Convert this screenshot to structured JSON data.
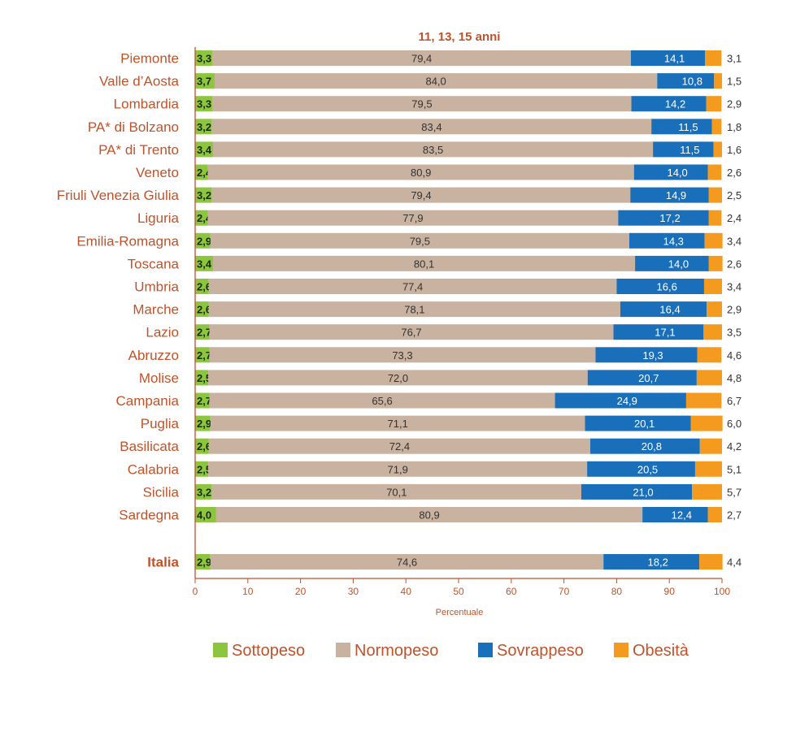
{
  "chart_data": {
    "type": "bar",
    "orientation": "horizontal",
    "stacked": true,
    "title": "11, 13, 15 anni",
    "xlabel": "Percentuale",
    "ylabel": "",
    "xlim": [
      0,
      100
    ],
    "x_ticks": [
      "0",
      "10",
      "20",
      "30",
      "40",
      "50",
      "60",
      "70",
      "80",
      "90",
      "100"
    ],
    "grid": false,
    "legend_position": "bottom",
    "categories": [
      "Piemonte",
      "Valle d’Aosta",
      "Lombardia",
      "PA* di Bolzano",
      "PA* di Trento",
      "Veneto",
      "Friuli Venezia Giulia",
      "Liguria",
      "Emilia-Romagna",
      "Toscana",
      "Umbria",
      "Marche",
      "Lazio",
      "Abruzzo",
      "Molise",
      "Campania",
      "Puglia",
      "Basilicata",
      "Calabria",
      "Sicilia",
      "Sardegna",
      "Italia"
    ],
    "emphasized_category": "Italia",
    "series": [
      {
        "name": "Sottopeso",
        "color": "#8cc63f",
        "values": [
          3.3,
          3.7,
          3.3,
          3.2,
          3.4,
          2.4,
          3.2,
          2.4,
          2.9,
          3.4,
          2.6,
          2.6,
          2.7,
          2.7,
          2.5,
          2.7,
          2.9,
          2.6,
          2.5,
          3.2,
          4.0,
          2.9
        ],
        "labels": [
          "3,3",
          "3,7",
          "3,3",
          "3,2",
          "3,4",
          "2,4",
          "3,2",
          "2,4",
          "2,9",
          "3,4",
          "2,6",
          "2,6",
          "2,7",
          "2,7",
          "2,5",
          "2,7",
          "2,9",
          "2,6",
          "2,5",
          "3,2",
          "4,0",
          "2,9"
        ]
      },
      {
        "name": "Normopeso",
        "color": "#c9b29f",
        "values": [
          79.4,
          84.0,
          79.5,
          83.4,
          83.5,
          80.9,
          79.4,
          77.9,
          79.5,
          80.1,
          77.4,
          78.1,
          76.7,
          73.3,
          72.0,
          65.6,
          71.1,
          72.4,
          71.9,
          70.1,
          80.9,
          74.6
        ],
        "labels": [
          "79,4",
          "84,0",
          "79,5",
          "83,4",
          "83,5",
          "80,9",
          "79,4",
          "77,9",
          "79,5",
          "80,1",
          "77,4",
          "78,1",
          "76,7",
          "73,3",
          "72,0",
          "65,6",
          "71,1",
          "72,4",
          "71,9",
          "70,1",
          "80,9",
          "74,6"
        ]
      },
      {
        "name": "Sovrappeso",
        "color": "#1a6fba",
        "values": [
          14.1,
          10.8,
          14.2,
          11.5,
          11.5,
          14.0,
          14.9,
          17.2,
          14.3,
          14.0,
          16.6,
          16.4,
          17.1,
          19.3,
          20.7,
          24.9,
          20.1,
          20.8,
          20.5,
          21.0,
          12.4,
          18.2
        ],
        "labels": [
          "14,1",
          "10,8",
          "14,2",
          "11,5",
          "11,5",
          "14,0",
          "14,9",
          "17,2",
          "14,3",
          "14,0",
          "16,6",
          "16,4",
          "17,1",
          "19,3",
          "20,7",
          "24,9",
          "20,1",
          "20,8",
          "20,5",
          "21,0",
          "12,4",
          "18,2"
        ]
      },
      {
        "name": "Obesità",
        "color": "#f39a1f",
        "values": [
          3.1,
          1.5,
          2.9,
          1.8,
          1.6,
          2.6,
          2.5,
          2.4,
          3.4,
          2.6,
          3.4,
          2.9,
          3.5,
          4.6,
          4.8,
          6.7,
          6.0,
          4.2,
          5.1,
          5.7,
          2.7,
          4.4
        ],
        "labels": [
          "3,1",
          "1,5",
          "2,9",
          "1,8",
          "1,6",
          "2,6",
          "2,5",
          "2,4",
          "3,4",
          "2,6",
          "3,4",
          "2,9",
          "3,5",
          "4,6",
          "4,8",
          "6,7",
          "6,0",
          "4,2",
          "5,1",
          "5,7",
          "2,7",
          "4,4"
        ]
      }
    ],
    "colors": {
      "category_text": "#c0532a",
      "title_text": "#c0532a",
      "axis": "#c0532a",
      "value_text": "#333333",
      "light_value_text": "#ffffff"
    }
  }
}
